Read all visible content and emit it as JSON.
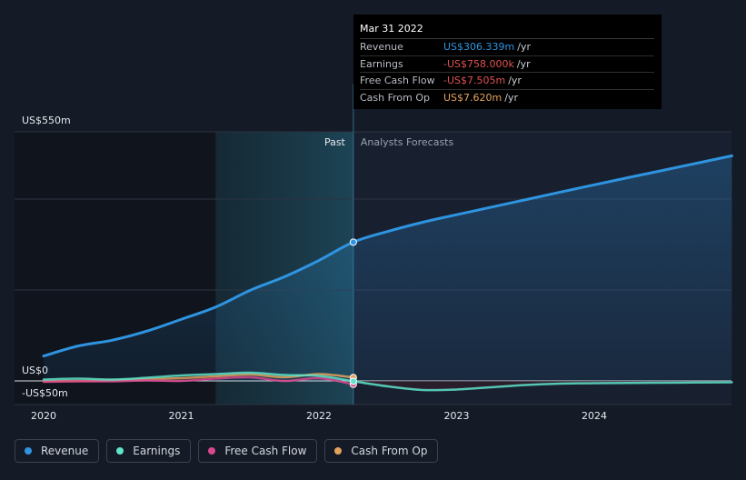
{
  "chart_data": {
    "type": "line",
    "y_axis": {
      "min": -50,
      "max": 550,
      "labels": [
        "US$550m",
        "US$0",
        "-US$50m"
      ],
      "label_values": [
        550,
        0,
        -50
      ]
    },
    "x_axis": {
      "min": 2020,
      "max": 2025,
      "ticks": [
        "2020",
        "2021",
        "2022",
        "2023",
        "2024"
      ],
      "tick_values": [
        2020,
        2021,
        2022,
        2023,
        2024
      ]
    },
    "divider_x": 2022.25,
    "past_highlight_start": 2021.25,
    "past_label": "Past",
    "forecast_label": "Analysts Forecasts",
    "grid": true,
    "series": [
      {
        "name": "Revenue",
        "color": "#2f94e0",
        "points": [
          [
            2020.0,
            55
          ],
          [
            2020.25,
            77
          ],
          [
            2020.5,
            90
          ],
          [
            2020.75,
            110
          ],
          [
            2021.0,
            136
          ],
          [
            2021.25,
            163
          ],
          [
            2021.5,
            200
          ],
          [
            2021.75,
            230
          ],
          [
            2022.0,
            266
          ],
          [
            2022.25,
            306.339
          ],
          [
            2022.5,
            330
          ],
          [
            2022.75,
            350
          ],
          [
            2023.0,
            367
          ],
          [
            2023.5,
            400
          ],
          [
            2024.0,
            433
          ],
          [
            2024.5,
            465
          ],
          [
            2025.0,
            497
          ]
        ]
      },
      {
        "name": "Earnings",
        "color": "#5fe3c9",
        "points": [
          [
            2020.0,
            3
          ],
          [
            2020.25,
            5
          ],
          [
            2020.5,
            3
          ],
          [
            2020.75,
            7
          ],
          [
            2021.0,
            12
          ],
          [
            2021.25,
            15
          ],
          [
            2021.5,
            18
          ],
          [
            2021.75,
            13
          ],
          [
            2022.0,
            11
          ],
          [
            2022.25,
            -0.758
          ],
          [
            2022.5,
            -12
          ],
          [
            2022.75,
            -20
          ],
          [
            2023.0,
            -19
          ],
          [
            2023.25,
            -14
          ],
          [
            2023.5,
            -9
          ],
          [
            2023.75,
            -6
          ],
          [
            2024.0,
            -5
          ],
          [
            2024.5,
            -4
          ],
          [
            2025.0,
            -3
          ]
        ]
      },
      {
        "name": "Free Cash Flow",
        "color": "#d9478f",
        "points": [
          [
            2020.0,
            -2
          ],
          [
            2020.25,
            -1
          ],
          [
            2020.5,
            -1
          ],
          [
            2020.75,
            1
          ],
          [
            2021.0,
            0
          ],
          [
            2021.25,
            5
          ],
          [
            2021.5,
            8
          ],
          [
            2021.75,
            0
          ],
          [
            2022.0,
            6
          ],
          [
            2022.25,
            -7.505
          ]
        ]
      },
      {
        "name": "Cash From Op",
        "color": "#e3a25c",
        "points": [
          [
            2020.0,
            -1
          ],
          [
            2020.25,
            0
          ],
          [
            2020.5,
            1
          ],
          [
            2020.75,
            4
          ],
          [
            2021.0,
            6
          ],
          [
            2021.25,
            10
          ],
          [
            2021.5,
            14
          ],
          [
            2021.75,
            8
          ],
          [
            2022.0,
            15
          ],
          [
            2022.25,
            7.62
          ]
        ]
      }
    ]
  },
  "tooltip": {
    "date": "Mar 31 2022",
    "rows": [
      {
        "label": "Revenue",
        "value": "US$306.339m",
        "unit": "/yr",
        "color": "#2f94e0"
      },
      {
        "label": "Earnings",
        "value": "-US$758.000k",
        "unit": "/yr",
        "color": "#e05252"
      },
      {
        "label": "Free Cash Flow",
        "value": "-US$7.505m",
        "unit": "/yr",
        "color": "#e05252"
      },
      {
        "label": "Cash From Op",
        "value": "US$7.620m",
        "unit": "/yr",
        "color": "#e3a25c"
      }
    ]
  },
  "legend": [
    {
      "label": "Revenue",
      "color": "#2f94e0"
    },
    {
      "label": "Earnings",
      "color": "#5fe3c9"
    },
    {
      "label": "Free Cash Flow",
      "color": "#d9478f"
    },
    {
      "label": "Cash From Op",
      "color": "#e3a25c"
    }
  ]
}
